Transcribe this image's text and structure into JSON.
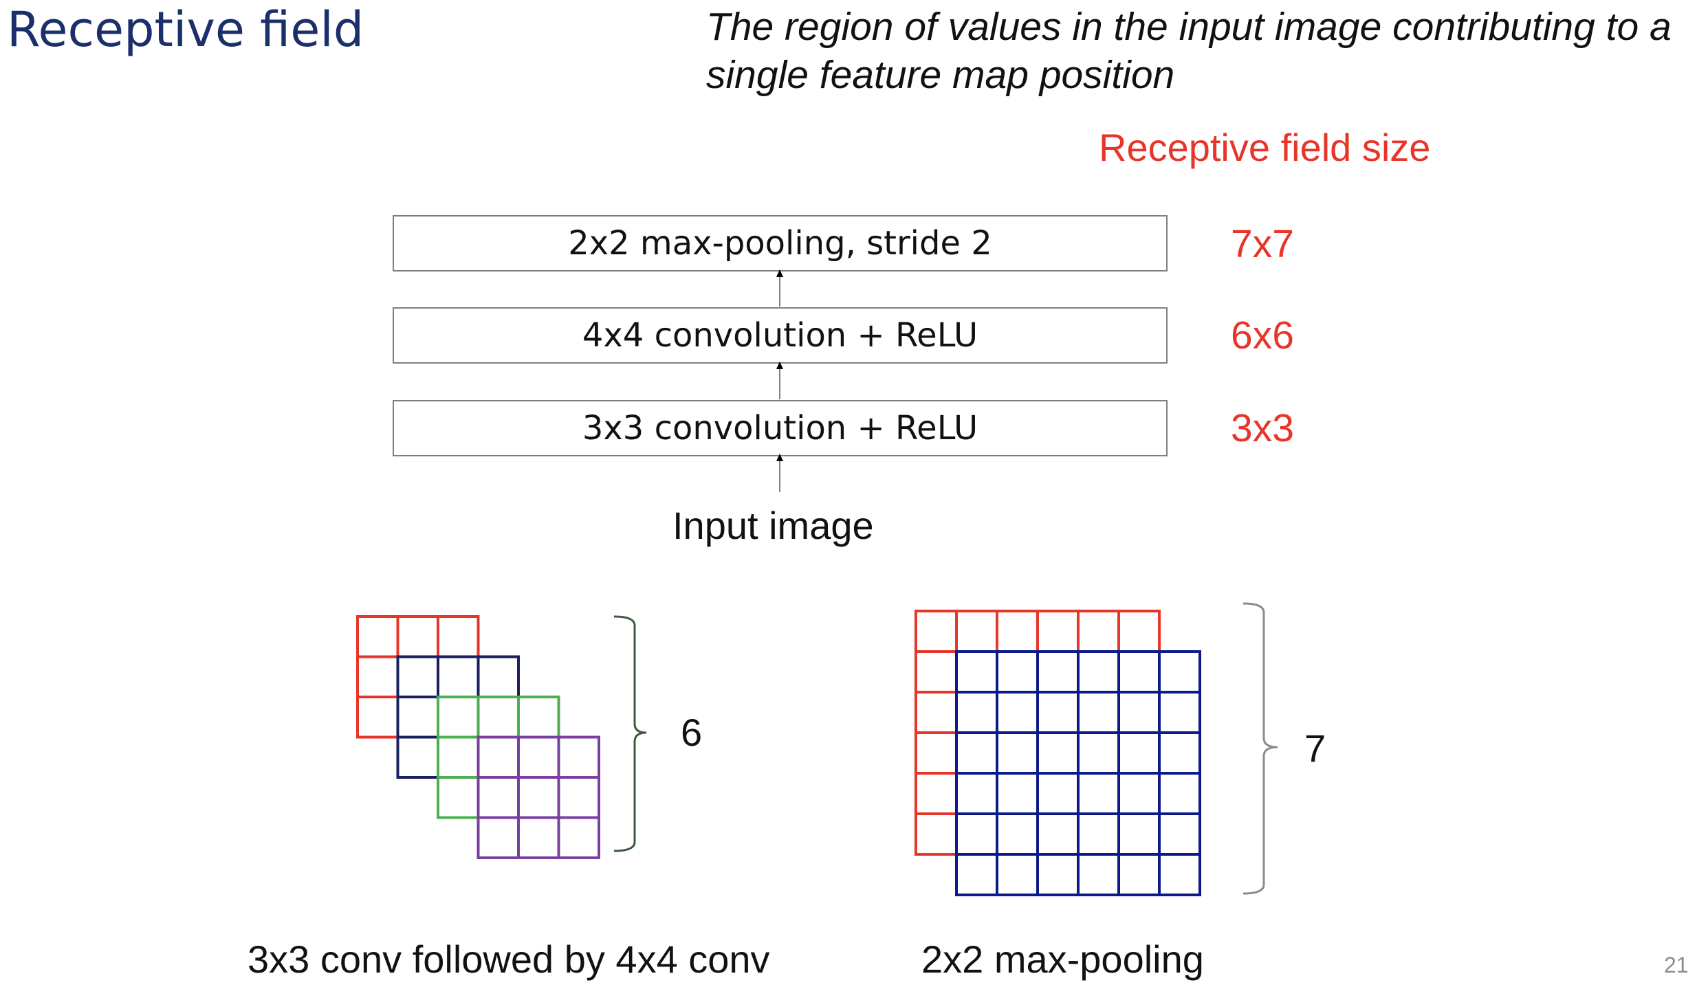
{
  "slide": {
    "title": "Receptive field",
    "subtitle": "The region of values in the input image contributing to a single feature map position",
    "page_number": "21"
  },
  "layers": {
    "receptive_field_header": "Receptive field size",
    "items": [
      {
        "label": "2x2 max-pooling, stride 2",
        "receptive_field": "7x7"
      },
      {
        "label": "4x4 convolution + ReLU",
        "receptive_field": "6x6"
      },
      {
        "label": "3x3 convolution + ReLU",
        "receptive_field": "3x3"
      }
    ],
    "input_label": "Input image"
  },
  "diagrams": {
    "conv": {
      "caption": "3x3 conv followed by 4x4 conv",
      "bracket_label": "6",
      "grid_size": 3,
      "offsets_cells": [
        0,
        1,
        2,
        3
      ],
      "colors": [
        "#e8352a",
        "#1b1f5e",
        "#4caf50",
        "#7b3fa0"
      ]
    },
    "pool": {
      "caption": "2x2 max-pooling",
      "bracket_label": "7",
      "grid_size": 6,
      "offsets_cells": [
        0,
        1
      ],
      "colors": [
        "#e8352a",
        "#0d1a8a"
      ]
    }
  }
}
